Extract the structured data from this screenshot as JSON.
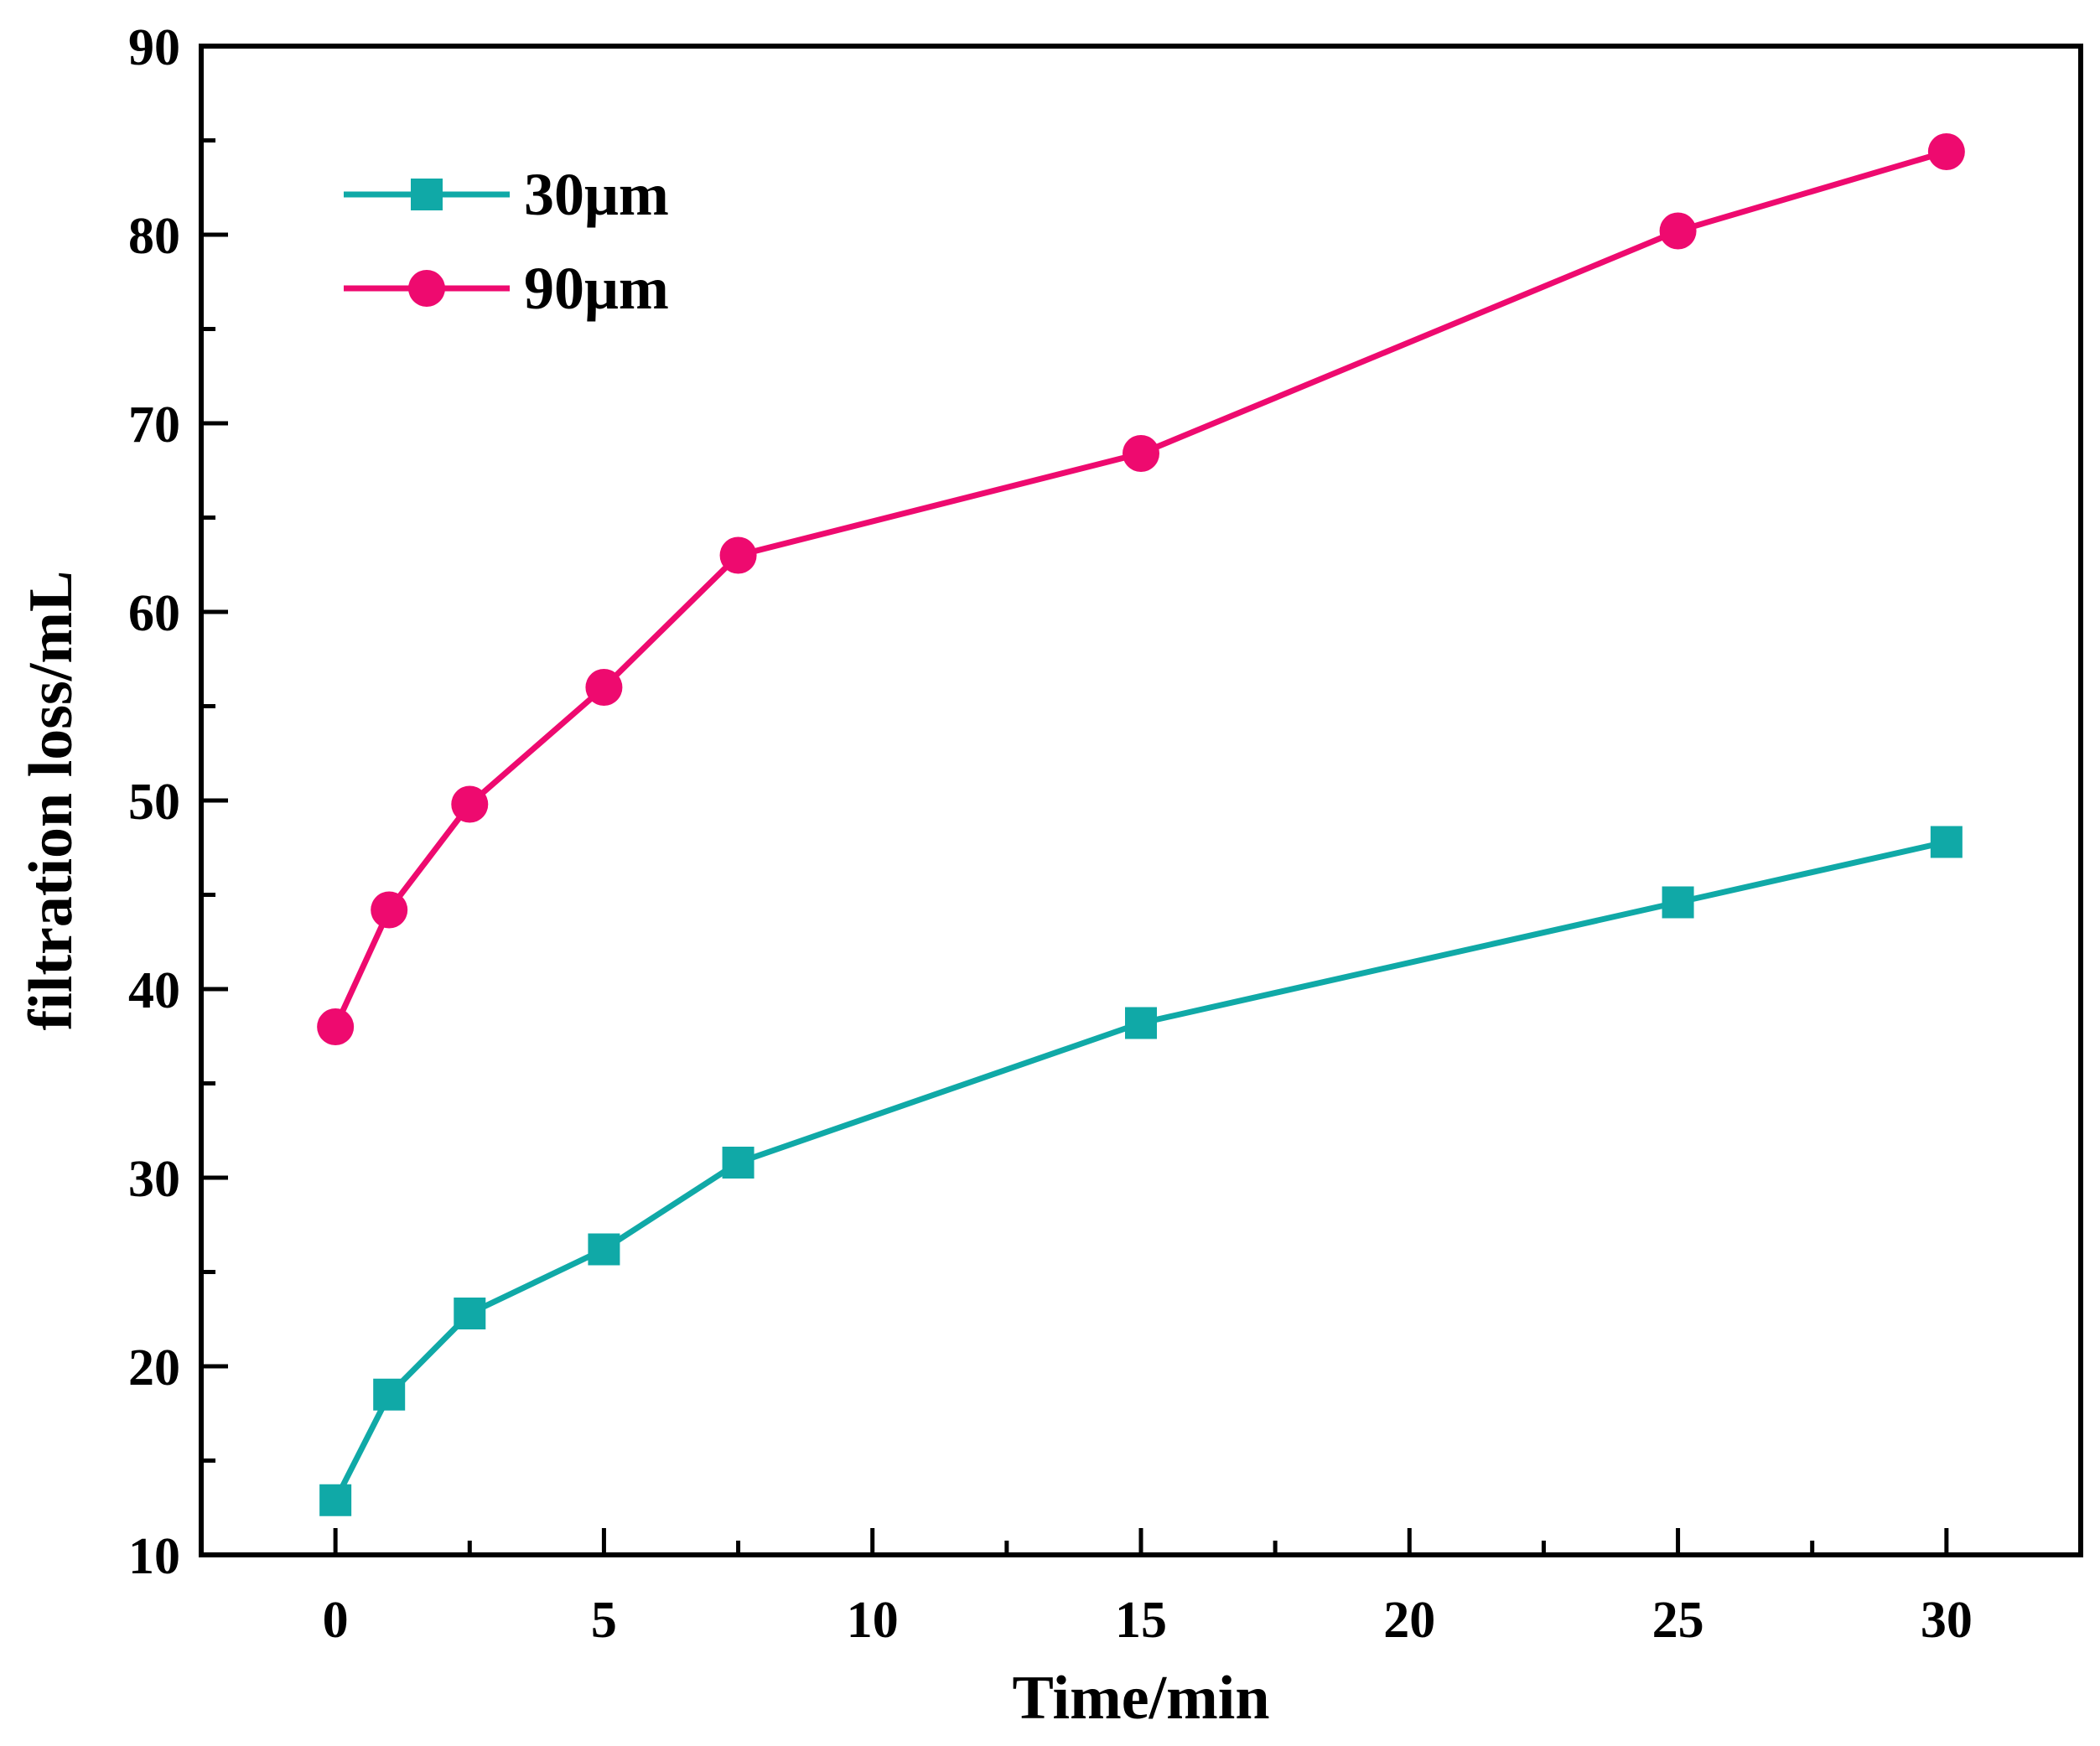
{
  "chart_data": {
    "type": "line",
    "title": "",
    "xlabel": "Time/min",
    "ylabel": "filtration loss/mL",
    "xlim": [
      -2.5,
      32.5
    ],
    "ylim": [
      10,
      90
    ],
    "xticks": [
      0,
      5,
      10,
      15,
      20,
      25,
      30
    ],
    "yticks": [
      10,
      20,
      30,
      40,
      50,
      60,
      70,
      80,
      90
    ],
    "xtick_labels": [
      "0",
      "5",
      "10",
      "15",
      "20",
      "25",
      "30"
    ],
    "ytick_labels": [
      "10",
      "20",
      "30",
      "40",
      "50",
      "60",
      "70",
      "80",
      "90"
    ],
    "legend_position": "top-left",
    "grid": false,
    "x": [
      0,
      1,
      2.5,
      5,
      7.5,
      15,
      25,
      30
    ],
    "series": [
      {
        "name": "30μm",
        "color": "#10A9A7",
        "marker": "square",
        "values": [
          12.9,
          18.5,
          22.8,
          26.2,
          30.8,
          38.2,
          44.6,
          47.8
        ]
      },
      {
        "name": "90μm",
        "color": "#EE0A6F",
        "marker": "circle",
        "values": [
          38.0,
          44.2,
          49.8,
          56.0,
          63.0,
          68.4,
          80.2,
          84.4
        ]
      }
    ]
  }
}
